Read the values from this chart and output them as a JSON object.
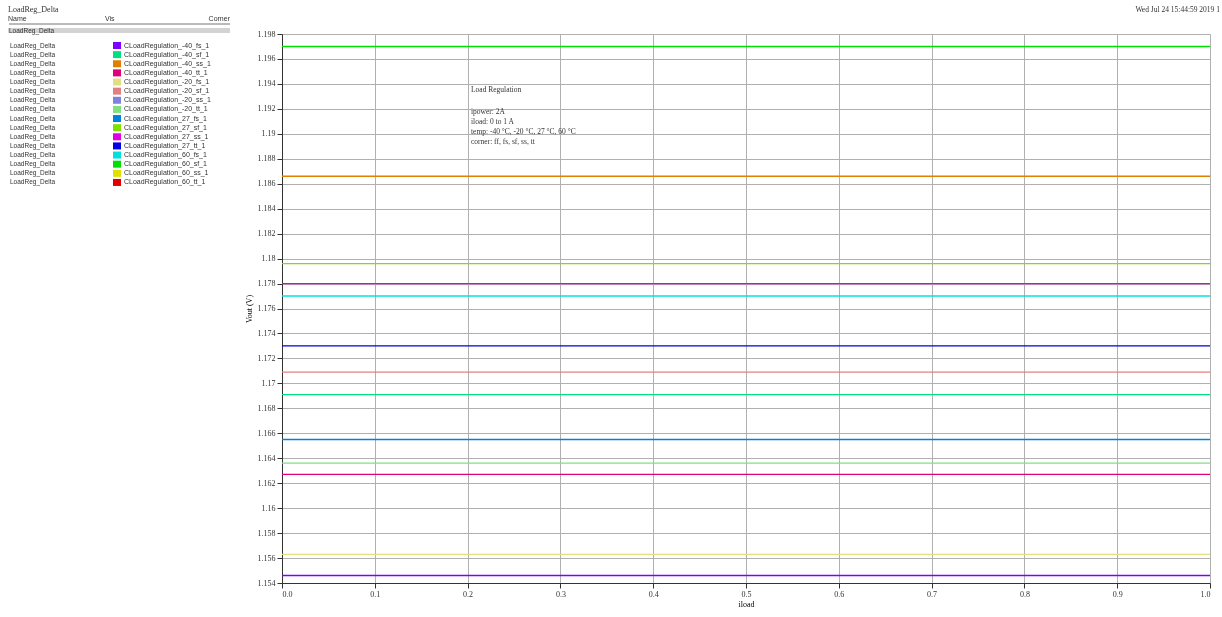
{
  "chart_data": {
    "type": "line",
    "title": "LoadReg_Delta",
    "legend_title": "LoadReg_Delta",
    "xlabel": "iload",
    "ylabel": "Vout (V)",
    "x": [
      0,
      1
    ],
    "series": [
      {
        "name": "CLoadRegulation_-40_fs_1",
        "color": "#8000ff",
        "values": [
          1.1546,
          1.1546
        ]
      },
      {
        "name": "CLoadRegulation_-40_sf_1",
        "color": "#00e080",
        "values": [
          1.1691,
          1.1691
        ]
      },
      {
        "name": "CLoadRegulation_-40_ss_1",
        "color": "#e08000",
        "values": [
          1.1866,
          1.1866
        ]
      },
      {
        "name": "CLoadRegulation_-40_tt_1",
        "color": "#e0007a",
        "values": [
          1.1627,
          1.1627
        ]
      },
      {
        "name": "CLoadRegulation_-20_fs_1",
        "color": "#e0e080",
        "values": [
          1.1563,
          1.1563
        ]
      },
      {
        "name": "CLoadRegulation_-20_sf_1",
        "color": "#e08080",
        "values": [
          1.1709,
          1.1709
        ]
      },
      {
        "name": "CLoadRegulation_-20_ss_1",
        "color": "#8080e0",
        "values": [
          null,
          null
        ]
      },
      {
        "name": "CLoadRegulation_-20_tt_1",
        "color": "#80e080",
        "values": [
          1.1636,
          1.1636
        ]
      },
      {
        "name": "CLoadRegulation_27_fs_1",
        "color": "#0080e0",
        "values": [
          1.1655,
          1.1655
        ]
      },
      {
        "name": "CLoadRegulation_27_sf_1",
        "color": "#80e000",
        "values": [
          1.1796,
          1.1796
        ]
      },
      {
        "name": "CLoadRegulation_27_ss_1",
        "color": "#e000e0",
        "values": [
          1.178,
          1.178
        ]
      },
      {
        "name": "CLoadRegulation_27_tt_1",
        "color": "#0000e0",
        "values": [
          1.173,
          1.173
        ]
      },
      {
        "name": "CLoadRegulation_60_fs_1",
        "color": "#00e0e0",
        "values": [
          1.177,
          1.177
        ]
      },
      {
        "name": "CLoadRegulation_60_sf_1",
        "color": "#00e000",
        "values": [
          1.197,
          1.197
        ]
      },
      {
        "name": "CLoadRegulation_60_ss_1",
        "color": "#e0e000",
        "values": [
          null,
          null
        ]
      },
      {
        "name": "CLoadRegulation_60_tt_1",
        "color": "#e00000",
        "values": [
          null,
          null
        ]
      }
    ],
    "xlim": [
      0,
      1
    ],
    "xticks": [
      {
        "value": 0,
        "label": "0.0"
      },
      0.1,
      0.2,
      0.3,
      0.4,
      0.5,
      0.6,
      0.7,
      0.8,
      0.9,
      {
        "value": 1,
        "label": "1.0"
      }
    ],
    "ylim": [
      1.154,
      1.198
    ],
    "yticks": [
      1.154,
      1.156,
      1.158,
      1.16,
      1.162,
      1.164,
      1.166,
      1.168,
      1.17,
      1.172,
      1.174,
      1.176,
      1.178,
      1.18,
      1.182,
      1.184,
      1.186,
      1.188,
      1.19,
      1.192,
      1.194,
      1.196,
      1.198
    ],
    "grid": true,
    "legend": "left",
    "marker": "none",
    "line_style": "solid",
    "annotations": [
      "Wed Jul 24 15:44:59 2019 1",
      "Name",
      "Vis",
      "Corner",
      "Load Regulation",
      "ipower: 2A",
      "iload: 0 to 1 A",
      "temp: -40 °C, -20 °C, 27 °C, 60 °C",
      "corner: ff, fs, sf, ss, tt"
    ]
  }
}
